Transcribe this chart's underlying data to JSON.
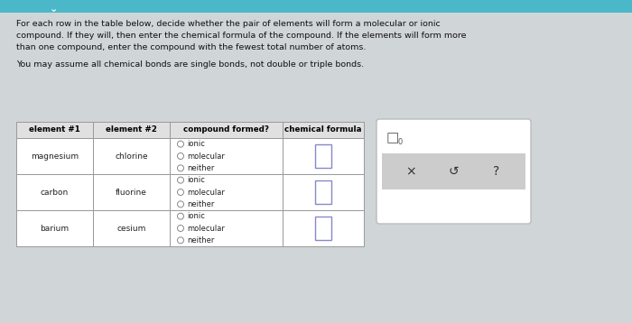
{
  "bg_color": "#d0d5d8",
  "top_bar_color": "#4ab8c8",
  "header_lines": [
    "For each row in the table below, decide whether the pair of elements will form a molecular or ionic",
    "compound. If they will, then enter the chemical formula of the compound. If the elements will form more",
    "than one compound, enter the compound with the fewest total number of atoms."
  ],
  "subheader": "You may assume all chemical bonds are single bonds, not double or triple bonds.",
  "col_headers": [
    "element #1",
    "element #2",
    "compound formed?",
    "chemical formula"
  ],
  "rows": [
    {
      "el1": "magnesium",
      "el2": "chlorine",
      "options": [
        "ionic",
        "molecular",
        "neither"
      ]
    },
    {
      "el1": "carbon",
      "el2": "fluorine",
      "options": [
        "ionic",
        "molecular",
        "neither"
      ]
    },
    {
      "el1": "barium",
      "el2": "cesium",
      "options": [
        "ionic",
        "molecular",
        "neither"
      ]
    }
  ],
  "cell_text_color": "#222222",
  "header_cell_color": "#e0e0e0",
  "data_cell_color": "#ffffff",
  "radio_color": "#888888",
  "formula_box_color": "#8888cc",
  "sidebar_bg": "#ffffff",
  "sidebar_inner_bg": "#cccccc",
  "sidebar_x_color": "#444444",
  "sidebar_icons_color": "#444444"
}
